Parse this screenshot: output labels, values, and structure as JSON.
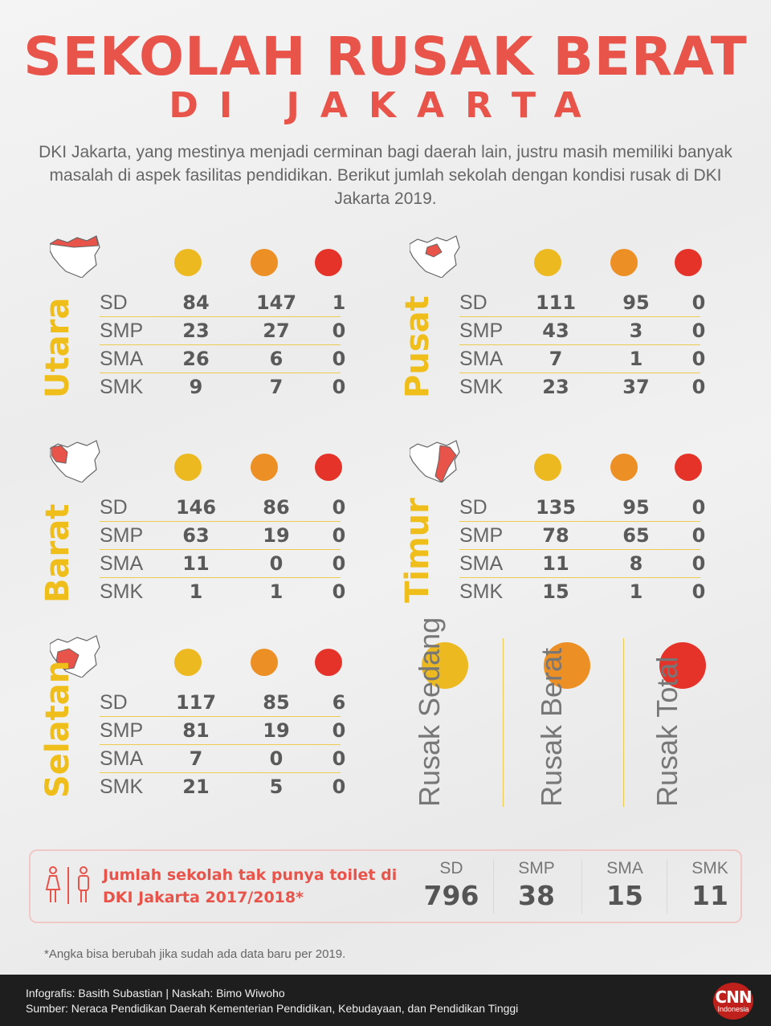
{
  "title": "SEKOLAH RUSAK BERAT",
  "subtitle": "DI JAKARTA",
  "intro": "DKI Jakarta, yang mestinya menjadi cerminan bagi daerah lain, justru masih memiliki banyak masalah di aspek fasilitas pendidikan. Berikut jumlah sekolah dengan kondisi rusak di DKI Jakarta 2019.",
  "colors": {
    "title": "#e8534a",
    "sedang": "#ecb921",
    "berat": "#ec8f24",
    "total": "#e5332a",
    "region_name": "#f0be1a"
  },
  "regions": {
    "utara": {
      "name": "Utara",
      "rows": [
        [
          "SD",
          "84",
          "147",
          "1"
        ],
        [
          "SMP",
          "23",
          "27",
          "0"
        ],
        [
          "SMA",
          "26",
          "6",
          "0"
        ],
        [
          "SMK",
          "9",
          "7",
          "0"
        ]
      ]
    },
    "pusat": {
      "name": "Pusat",
      "rows": [
        [
          "SD",
          "111",
          "95",
          "0"
        ],
        [
          "SMP",
          "43",
          "3",
          "0"
        ],
        [
          "SMA",
          "7",
          "1",
          "0"
        ],
        [
          "SMK",
          "23",
          "37",
          "0"
        ]
      ]
    },
    "barat": {
      "name": "Barat",
      "rows": [
        [
          "SD",
          "146",
          "86",
          "0"
        ],
        [
          "SMP",
          "63",
          "19",
          "0"
        ],
        [
          "SMA",
          "11",
          "0",
          "0"
        ],
        [
          "SMK",
          "1",
          "1",
          "0"
        ]
      ]
    },
    "timur": {
      "name": "Timur",
      "rows": [
        [
          "SD",
          "135",
          "95",
          "0"
        ],
        [
          "SMP",
          "78",
          "65",
          "0"
        ],
        [
          "SMA",
          "11",
          "8",
          "0"
        ],
        [
          "SMK",
          "15",
          "1",
          "0"
        ]
      ]
    },
    "selatan": {
      "name": "Selatan",
      "rows": [
        [
          "SD",
          "117",
          "85",
          "6"
        ],
        [
          "SMP",
          "81",
          "19",
          "0"
        ],
        [
          "SMA",
          "7",
          "0",
          "0"
        ],
        [
          "SMK",
          "21",
          "5",
          "0"
        ]
      ]
    }
  },
  "legend": {
    "sedang": "Rusak Sedang",
    "berat": "Rusak Berat",
    "total": "Rusak Total"
  },
  "toilet": {
    "text": "Jumlah sekolah tak punya toilet di DKI Jakarta 2017/2018*",
    "stats": [
      [
        "SD",
        "796"
      ],
      [
        "SMP",
        "38"
      ],
      [
        "SMA",
        "15"
      ],
      [
        "SMK",
        "11"
      ]
    ]
  },
  "note": "*Angka bisa berubah jika sudah ada data baru per 2019.",
  "footer": {
    "credits": "Infografis: Basith Subastian | Naskah: Bimo Wiwoho",
    "source": "Sumber: Neraca Pendidikan Daerah Kementerian Pendidikan, Kebudayaan, dan Pendidikan Tinggi",
    "logo": "CNN",
    "logo_sub": "Indonesia"
  }
}
